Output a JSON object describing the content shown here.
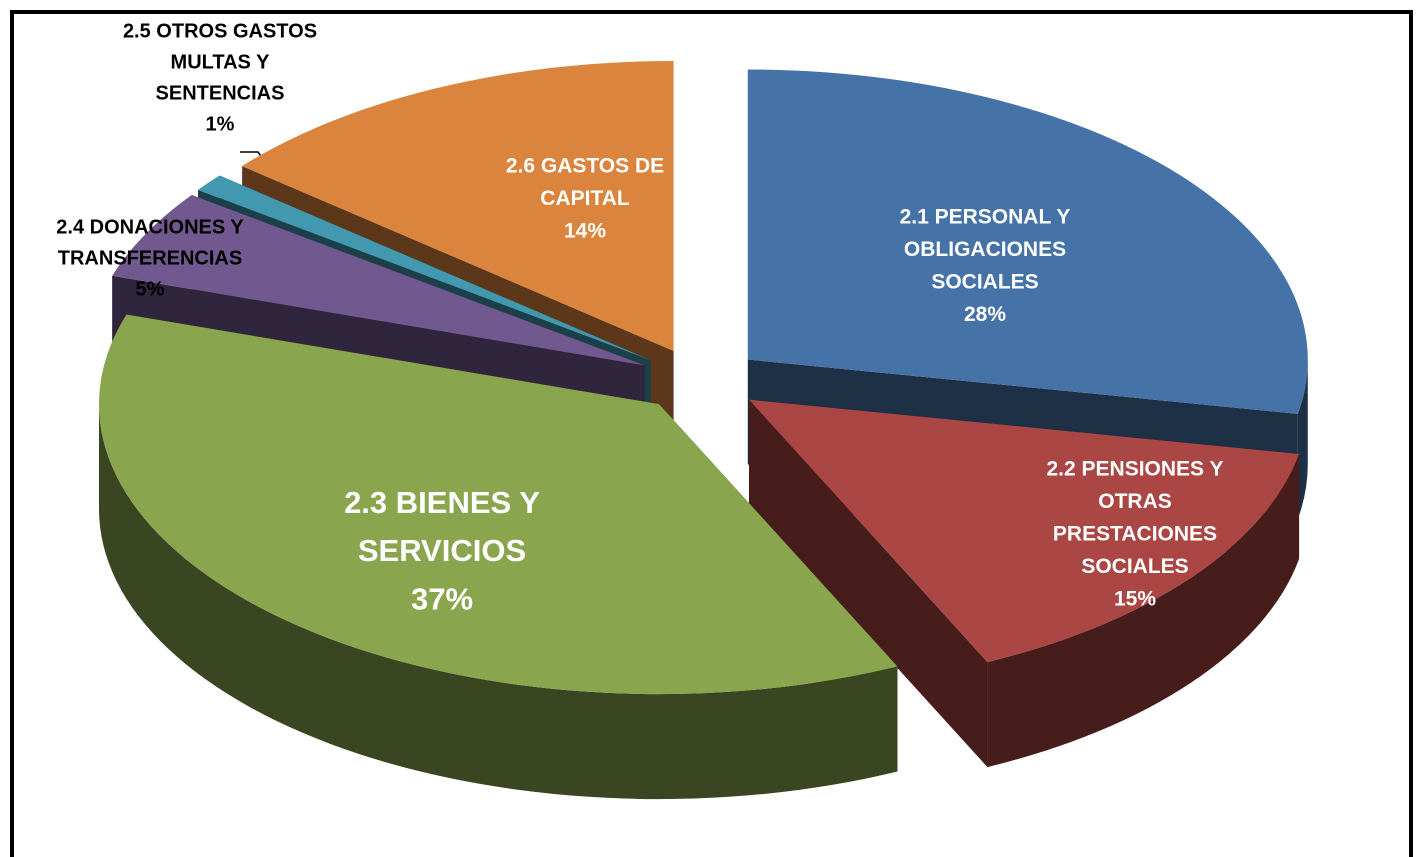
{
  "chart_data": {
    "type": "pie",
    "categories": [
      [
        "2.1 PERSONAL Y",
        "OBLIGACIONES",
        "SOCIALES"
      ],
      [
        "2.2 PENSIONES Y",
        "OTRAS",
        "PRESTACIONES",
        "SOCIALES"
      ],
      [
        "2.3 BIENES Y",
        "SERVICIOS"
      ],
      [
        "2.4 DONACIONES Y",
        "TRANSFERENCIAS"
      ],
      [
        "2.5 OTROS GASTOS",
        "MULTAS Y",
        "SENTENCIAS"
      ],
      [
        "2.6 GASTOS DE",
        "CAPITAL"
      ]
    ],
    "values": [
      28,
      15,
      37,
      5,
      1,
      14
    ],
    "value_labels": [
      "28%",
      "15%",
      "37%",
      "5%",
      "1%",
      "14%"
    ],
    "colors": [
      "#4572a7",
      "#aa4643",
      "#89a54e",
      "#71588f",
      "#4198af",
      "#db843d"
    ]
  }
}
